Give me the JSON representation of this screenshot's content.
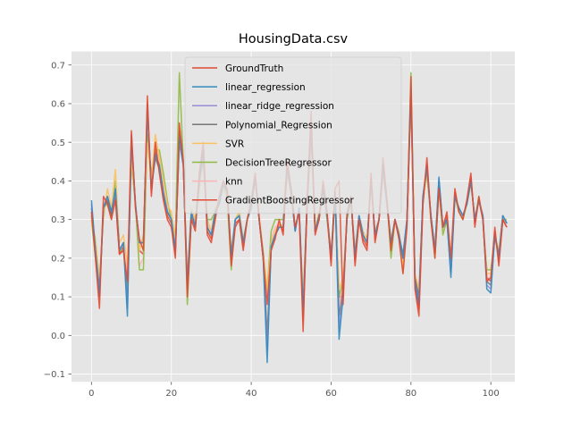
{
  "chart_data": {
    "type": "line",
    "title": "HousingData.csv",
    "xlabel": "",
    "ylabel": "",
    "xlim": [
      -5,
      106
    ],
    "ylim": [
      -0.12,
      0.735
    ],
    "x_ticks": [
      0,
      20,
      40,
      60,
      80,
      100
    ],
    "y_ticks": [
      -0.1,
      0.0,
      0.1,
      0.2,
      0.3,
      0.4,
      0.5,
      0.6,
      0.7
    ],
    "x_tick_labels": [
      "0",
      "20",
      "40",
      "60",
      "80",
      "100"
    ],
    "y_tick_labels": [
      "−0.1",
      "0.0",
      "0.1",
      "0.2",
      "0.3",
      "0.4",
      "0.5",
      "0.6",
      "0.7"
    ],
    "grid": true,
    "style": "ggplot",
    "legend_position": "top-center",
    "series": [
      {
        "name": "GroundTruth",
        "color": "#E24A33",
        "values": [
          0.32,
          0.2,
          0.07,
          0.36,
          0.34,
          0.3,
          0.35,
          0.21,
          0.22,
          0.14,
          0.53,
          0.33,
          0.25,
          0.22,
          0.62,
          0.36,
          0.5,
          0.42,
          0.35,
          0.3,
          0.28,
          0.2,
          0.55,
          0.45,
          0.1,
          0.3,
          0.27,
          0.42,
          0.5,
          0.26,
          0.24,
          0.3,
          0.36,
          0.4,
          0.38,
          0.18,
          0.28,
          0.3,
          0.22,
          0.3,
          0.35,
          0.42,
          0.3,
          0.2,
          0.08,
          0.22,
          0.25,
          0.3,
          0.26,
          0.45,
          0.38,
          0.28,
          0.32,
          0.01,
          0.35,
          0.58,
          0.26,
          0.3,
          0.4,
          0.32,
          0.18,
          0.38,
          0.4,
          0.08,
          0.32,
          0.36,
          0.18,
          0.3,
          0.24,
          0.22,
          0.42,
          0.24,
          0.3,
          0.46,
          0.35,
          0.22,
          0.3,
          0.25,
          0.16,
          0.28,
          0.67,
          0.12,
          0.05,
          0.34,
          0.46,
          0.3,
          0.2,
          0.38,
          0.28,
          0.32,
          0.2,
          0.38,
          0.32,
          0.3,
          0.35,
          0.42,
          0.28,
          0.36,
          0.3,
          0.14,
          0.15,
          0.28,
          0.18,
          0.3,
          0.28
        ]
      },
      {
        "name": "linear_regression",
        "color": "#348ABD",
        "values": [
          0.35,
          0.22,
          0.1,
          0.33,
          0.36,
          0.32,
          0.38,
          0.22,
          0.24,
          0.05,
          0.52,
          0.34,
          0.24,
          0.24,
          0.6,
          0.38,
          0.47,
          0.44,
          0.37,
          0.32,
          0.3,
          0.22,
          0.52,
          0.44,
          0.12,
          0.32,
          0.28,
          0.4,
          0.48,
          0.28,
          0.26,
          0.32,
          0.34,
          0.4,
          0.37,
          0.2,
          0.3,
          0.31,
          0.24,
          0.3,
          0.33,
          0.41,
          0.3,
          0.2,
          -0.07,
          0.23,
          0.26,
          0.28,
          0.28,
          0.44,
          0.37,
          0.27,
          0.33,
          0.05,
          0.34,
          0.55,
          0.27,
          0.31,
          0.38,
          0.31,
          0.2,
          0.37,
          -0.01,
          0.1,
          0.31,
          0.35,
          0.2,
          0.31,
          0.26,
          0.24,
          0.4,
          0.26,
          0.3,
          0.44,
          0.34,
          0.24,
          0.3,
          0.26,
          0.2,
          0.3,
          0.64,
          0.14,
          0.08,
          0.36,
          0.44,
          0.31,
          0.22,
          0.41,
          0.28,
          0.3,
          0.15,
          0.36,
          0.33,
          0.31,
          0.34,
          0.4,
          0.3,
          0.35,
          0.31,
          0.12,
          0.11,
          0.26,
          0.2,
          0.31,
          0.29
        ]
      },
      {
        "name": "linear_ridge_regression",
        "color": "#988ED5",
        "values": [
          0.34,
          0.22,
          0.11,
          0.33,
          0.36,
          0.32,
          0.37,
          0.22,
          0.24,
          0.07,
          0.51,
          0.34,
          0.24,
          0.24,
          0.59,
          0.38,
          0.47,
          0.44,
          0.37,
          0.32,
          0.3,
          0.22,
          0.51,
          0.44,
          0.13,
          0.32,
          0.28,
          0.4,
          0.47,
          0.28,
          0.26,
          0.32,
          0.34,
          0.4,
          0.37,
          0.2,
          0.3,
          0.31,
          0.24,
          0.3,
          0.33,
          0.41,
          0.3,
          0.2,
          -0.04,
          0.23,
          0.26,
          0.28,
          0.28,
          0.43,
          0.37,
          0.27,
          0.33,
          0.06,
          0.34,
          0.54,
          0.27,
          0.31,
          0.38,
          0.31,
          0.2,
          0.37,
          0.02,
          0.11,
          0.31,
          0.35,
          0.2,
          0.31,
          0.26,
          0.24,
          0.4,
          0.26,
          0.3,
          0.44,
          0.34,
          0.24,
          0.3,
          0.26,
          0.2,
          0.3,
          0.63,
          0.14,
          0.09,
          0.36,
          0.44,
          0.31,
          0.22,
          0.4,
          0.28,
          0.3,
          0.16,
          0.36,
          0.33,
          0.31,
          0.34,
          0.4,
          0.3,
          0.35,
          0.31,
          0.13,
          0.12,
          0.26,
          0.2,
          0.31,
          0.29
        ]
      },
      {
        "name": "Polynomial_Regression",
        "color": "#777777",
        "values": [
          0.33,
          0.22,
          0.12,
          0.33,
          0.35,
          0.31,
          0.37,
          0.22,
          0.24,
          0.08,
          0.5,
          0.34,
          0.24,
          0.24,
          0.58,
          0.38,
          0.46,
          0.43,
          0.36,
          0.32,
          0.3,
          0.22,
          0.5,
          0.44,
          0.14,
          0.32,
          0.28,
          0.4,
          0.46,
          0.28,
          0.26,
          0.32,
          0.34,
          0.39,
          0.37,
          0.21,
          0.3,
          0.31,
          0.24,
          0.3,
          0.33,
          0.41,
          0.3,
          0.21,
          0.0,
          0.23,
          0.26,
          0.28,
          0.28,
          0.43,
          0.37,
          0.27,
          0.33,
          0.07,
          0.34,
          0.53,
          0.27,
          0.31,
          0.38,
          0.31,
          0.21,
          0.37,
          0.05,
          0.12,
          0.31,
          0.35,
          0.21,
          0.31,
          0.26,
          0.24,
          0.4,
          0.26,
          0.3,
          0.43,
          0.34,
          0.24,
          0.3,
          0.26,
          0.21,
          0.3,
          0.62,
          0.15,
          0.1,
          0.36,
          0.43,
          0.31,
          0.22,
          0.4,
          0.28,
          0.3,
          0.17,
          0.36,
          0.33,
          0.31,
          0.34,
          0.4,
          0.3,
          0.35,
          0.31,
          0.14,
          0.13,
          0.26,
          0.21,
          0.31,
          0.29
        ]
      },
      {
        "name": "SVR",
        "color": "#FBC15E",
        "values": [
          0.3,
          0.25,
          0.15,
          0.3,
          0.38,
          0.33,
          0.43,
          0.24,
          0.26,
          0.18,
          0.45,
          0.35,
          0.22,
          0.26,
          0.5,
          0.4,
          0.52,
          0.46,
          0.4,
          0.34,
          0.32,
          0.25,
          0.5,
          0.45,
          0.15,
          0.33,
          0.3,
          0.38,
          0.45,
          0.3,
          0.27,
          0.33,
          0.35,
          0.38,
          0.36,
          0.22,
          0.3,
          0.32,
          0.25,
          0.3,
          0.34,
          0.4,
          0.31,
          0.22,
          0.12,
          0.24,
          0.27,
          0.29,
          0.28,
          0.42,
          0.36,
          0.28,
          0.32,
          0.1,
          0.34,
          0.5,
          0.28,
          0.32,
          0.37,
          0.31,
          0.22,
          0.36,
          0.12,
          0.15,
          0.31,
          0.35,
          0.22,
          0.31,
          0.27,
          0.25,
          0.39,
          0.27,
          0.3,
          0.42,
          0.34,
          0.25,
          0.3,
          0.27,
          0.18,
          0.3,
          0.6,
          0.16,
          0.12,
          0.35,
          0.42,
          0.31,
          0.23,
          0.39,
          0.28,
          0.3,
          0.2,
          0.36,
          0.33,
          0.31,
          0.34,
          0.39,
          0.3,
          0.35,
          0.31,
          0.16,
          0.16,
          0.26,
          0.22,
          0.31,
          0.29
        ]
      },
      {
        "name": "DecisionTreeRegressor",
        "color": "#8EBA42",
        "values": [
          0.3,
          0.2,
          0.12,
          0.33,
          0.34,
          0.3,
          0.4,
          0.22,
          0.22,
          0.12,
          0.45,
          0.34,
          0.17,
          0.17,
          0.52,
          0.42,
          0.48,
          0.48,
          0.42,
          0.35,
          0.3,
          0.25,
          0.68,
          0.45,
          0.08,
          0.3,
          0.3,
          0.4,
          0.45,
          0.3,
          0.3,
          0.32,
          0.35,
          0.4,
          0.35,
          0.17,
          0.3,
          0.32,
          0.24,
          0.3,
          0.35,
          0.4,
          0.3,
          0.2,
          0.12,
          0.27,
          0.3,
          0.3,
          0.3,
          0.45,
          0.38,
          0.28,
          0.32,
          0.09,
          0.35,
          0.52,
          0.27,
          0.3,
          0.38,
          0.3,
          0.2,
          0.35,
          0.1,
          0.14,
          0.3,
          0.35,
          0.2,
          0.3,
          0.26,
          0.24,
          0.4,
          0.26,
          0.3,
          0.42,
          0.35,
          0.2,
          0.3,
          0.26,
          0.16,
          0.3,
          0.68,
          0.15,
          0.1,
          0.35,
          0.42,
          0.3,
          0.2,
          0.38,
          0.26,
          0.3,
          0.2,
          0.36,
          0.32,
          0.3,
          0.34,
          0.4,
          0.3,
          0.36,
          0.3,
          0.17,
          0.17,
          0.26,
          0.2,
          0.3,
          0.3
        ]
      },
      {
        "name": "knn",
        "color": "#FFB5B8",
        "values": [
          0.32,
          0.22,
          0.13,
          0.34,
          0.36,
          0.32,
          0.38,
          0.22,
          0.22,
          0.16,
          0.47,
          0.35,
          0.18,
          0.2,
          0.55,
          0.4,
          0.51,
          0.45,
          0.38,
          0.33,
          0.3,
          0.24,
          0.52,
          0.44,
          0.13,
          0.32,
          0.29,
          0.4,
          0.46,
          0.29,
          0.27,
          0.32,
          0.35,
          0.39,
          0.36,
          0.2,
          0.3,
          0.31,
          0.24,
          0.3,
          0.34,
          0.41,
          0.3,
          0.21,
          0.1,
          0.25,
          0.28,
          0.29,
          0.28,
          0.44,
          0.37,
          0.28,
          0.32,
          0.08,
          0.34,
          0.52,
          0.27,
          0.31,
          0.38,
          0.31,
          0.21,
          0.36,
          0.08,
          0.13,
          0.31,
          0.35,
          0.21,
          0.31,
          0.26,
          0.24,
          0.4,
          0.26,
          0.3,
          0.43,
          0.34,
          0.22,
          0.3,
          0.26,
          0.17,
          0.3,
          0.62,
          0.15,
          0.11,
          0.35,
          0.43,
          0.31,
          0.22,
          0.39,
          0.27,
          0.3,
          0.19,
          0.36,
          0.33,
          0.31,
          0.34,
          0.4,
          0.3,
          0.35,
          0.31,
          0.15,
          0.15,
          0.26,
          0.21,
          0.31,
          0.29
        ]
      },
      {
        "name": "GradientBoostingRegressor",
        "color": "#E24A33",
        "values": [
          0.31,
          0.21,
          0.1,
          0.34,
          0.35,
          0.31,
          0.36,
          0.21,
          0.23,
          0.13,
          0.5,
          0.34,
          0.22,
          0.21,
          0.58,
          0.37,
          0.48,
          0.43,
          0.36,
          0.31,
          0.29,
          0.21,
          0.53,
          0.45,
          0.11,
          0.31,
          0.28,
          0.41,
          0.48,
          0.27,
          0.25,
          0.31,
          0.35,
          0.4,
          0.37,
          0.19,
          0.29,
          0.3,
          0.23,
          0.3,
          0.34,
          0.41,
          0.3,
          0.2,
          0.1,
          0.23,
          0.26,
          0.29,
          0.27,
          0.44,
          0.37,
          0.28,
          0.32,
          0.04,
          0.34,
          0.55,
          0.27,
          0.3,
          0.39,
          0.31,
          0.19,
          0.37,
          0.1,
          0.1,
          0.31,
          0.35,
          0.19,
          0.3,
          0.25,
          0.23,
          0.41,
          0.25,
          0.3,
          0.44,
          0.34,
          0.23,
          0.3,
          0.25,
          0.17,
          0.29,
          0.65,
          0.13,
          0.07,
          0.34,
          0.44,
          0.3,
          0.21,
          0.38,
          0.28,
          0.31,
          0.19,
          0.37,
          0.32,
          0.3,
          0.35,
          0.41,
          0.29,
          0.35,
          0.3,
          0.15,
          0.14,
          0.27,
          0.19,
          0.3,
          0.28
        ]
      }
    ]
  }
}
